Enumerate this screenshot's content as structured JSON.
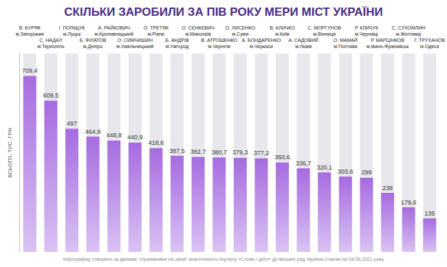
{
  "chart_data": {
    "type": "bar",
    "title": "СКІЛЬКИ ЗАРОБИЛИ ЗА ПІВ РОКУ МЕРИ МІСТ УКРАЇНИ",
    "y_label": "ВСЬОГО, ТИС. ГРН",
    "footnote": "Інфографіку створено за даними, отриманими на запит аналітичного порталу «Слово і діло» до міських рад України станом на 04.06.2021 року",
    "categories": [
      "В. БУРЯК",
      "С. НАДАЛ",
      "І. ПОЛІЩУК",
      "Б. ФІЛАТОВ",
      "А. РАЙКОВИЧ",
      "О. СИМЧИШИН",
      "О. ТРЕТЯК",
      "Б. АНДРІВ",
      "О. СЄНКЕВИЧ",
      "В. АТРОШЕНКО",
      "О. ЛИСЕНКО",
      "А. БОНДАРЕНКО",
      "В. КЛИЧКО",
      "А. САДОВИЙ",
      "С. МОРГУНОВ",
      "О. МАМАЙ",
      "Р. КЛИЧУК",
      "Р. МАРЦІНКОВ",
      "С. СУХОМЛИН",
      "Г. ТРУХАНОВ"
    ],
    "cities": [
      "м.Запоріжжя",
      "м.Тернопіль",
      "м.Луцьк",
      "м.Дніпро",
      "м.Кропивницький",
      "м.Хмельницький",
      "м.Рівне",
      "м.Ужгород",
      "м.Миколаїв",
      "м.Чернігів",
      "м.Суми",
      "м.Черкаси",
      "м.Київ",
      "м.Львів",
      "м.Вінниця",
      "м.Полтава",
      "м.Чернівці",
      "м.Івано-Франківськ",
      "м.Житомир",
      "м.Одеса"
    ],
    "values": [
      709.4,
      609.5,
      497,
      464.9,
      448.8,
      440.9,
      418.6,
      387.5,
      382.7,
      380.7,
      379.3,
      377.2,
      360.6,
      336.7,
      320.1,
      303.6,
      299,
      238,
      179.6,
      135
    ],
    "value_labels": [
      "709,4",
      "609,5",
      "497",
      "464,9",
      "448,8",
      "440,9",
      "418,6",
      "387,5",
      "382,7",
      "380,7",
      "379,3",
      "377,2",
      "360,6",
      "336,7",
      "320,1",
      "303,6",
      "299",
      "238",
      "179,6",
      "135"
    ],
    "color": "#a66be0",
    "ylim": [
      0,
      800
    ],
    "grid": false,
    "data_labels": true,
    "tick_labels": "x"
  }
}
